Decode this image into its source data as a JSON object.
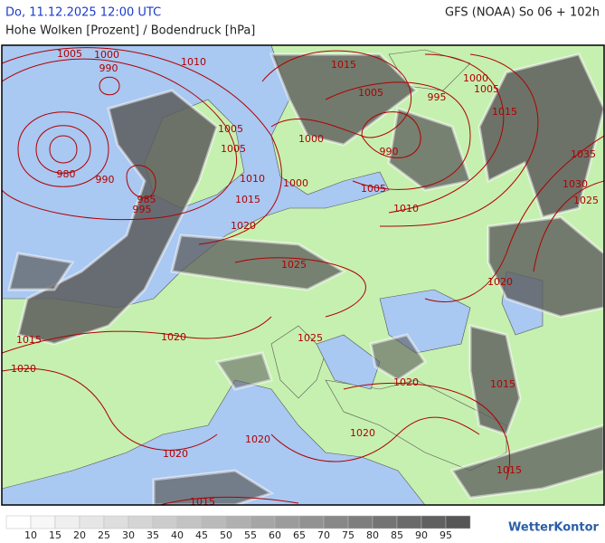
{
  "header": {
    "datetime": "Do, 11.12.2025 12:00 UTC",
    "model": "GFS (NOAA) So 06 + 102h",
    "title": "Hohe Wolken [Prozent] / Bodendruck [hPa]"
  },
  "isobar_labels": [
    1005,
    1000,
    990,
    1010,
    1015,
    1000,
    1005,
    1005,
    995,
    1015,
    1005,
    1000,
    990,
    1005,
    980,
    990,
    1035,
    1010,
    1000,
    1005,
    1030,
    985,
    1025,
    1015,
    995,
    1010,
    1020,
    1025,
    1020,
    1015,
    1020,
    1025,
    1020,
    1020,
    1015,
    1020,
    1020,
    1020,
    1015,
    1015
  ],
  "legend": {
    "ticks": [
      10,
      15,
      20,
      25,
      30,
      35,
      40,
      45,
      50,
      55,
      60,
      65,
      70,
      75,
      80,
      85,
      90,
      95
    ],
    "colors": [
      "#ffffff",
      "#f7f7f7",
      "#efefef",
      "#e6e6e6",
      "#dedede",
      "#d5d5d5",
      "#cccccc",
      "#c3c3c3",
      "#bababa",
      "#b0b0b0",
      "#a6a6a6",
      "#9c9c9c",
      "#929292",
      "#888888",
      "#7e7e7e",
      "#747474",
      "#6a6a6a",
      "#606060",
      "#565656"
    ]
  },
  "logo": "WetterKontor"
}
